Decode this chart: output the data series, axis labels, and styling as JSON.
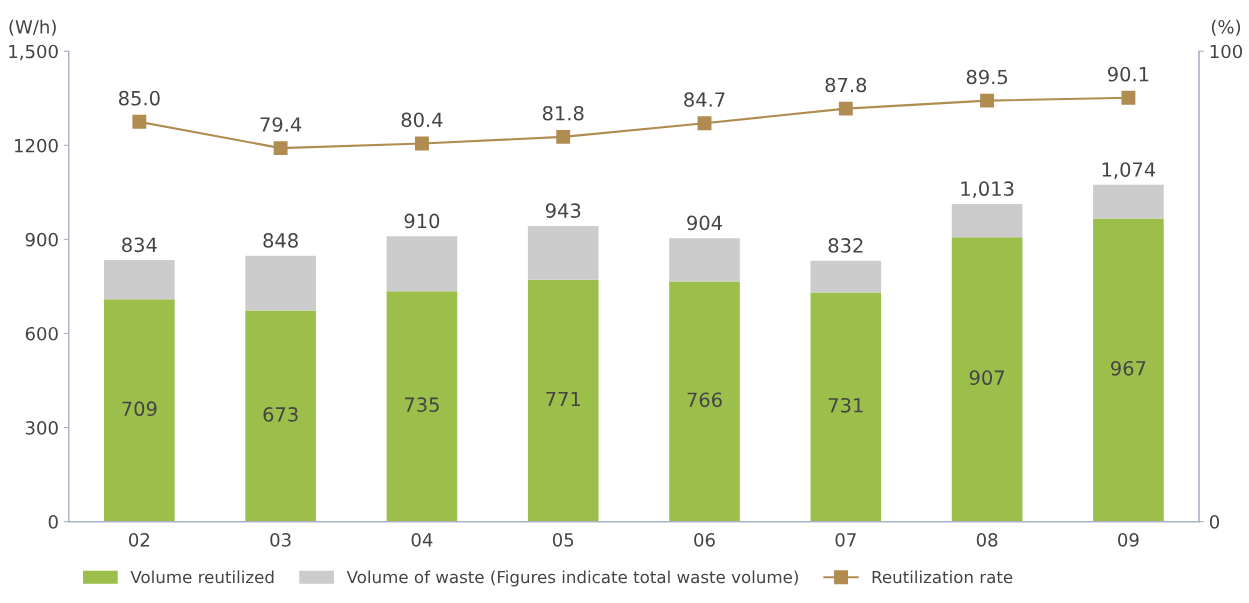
{
  "chart_data": {
    "type": "bar",
    "stacked": true,
    "ylabel": "(W/h)",
    "y2label": "(%)",
    "categories": [
      "02",
      "03",
      "04",
      "05",
      "06",
      "07",
      "08",
      "09"
    ],
    "series": [
      {
        "name": "Volume reutilized",
        "color": "#9cbf4c",
        "values": [
          709,
          673,
          735,
          771,
          766,
          731,
          907,
          967
        ],
        "value_labels": [
          "709",
          "673",
          "735",
          "771",
          "766",
          "731",
          "907",
          "967"
        ]
      },
      {
        "name": "Volume of waste (Figures indicate total waste volume)",
        "color": "#cccccc",
        "values": [
          125,
          175,
          175,
          172,
          138,
          101,
          106,
          107
        ]
      },
      {
        "name": "Reutilization rate",
        "type": "line",
        "axis": "y2",
        "color": "#b08c50",
        "marker": "square",
        "values": [
          85.0,
          79.4,
          80.4,
          81.8,
          84.7,
          87.8,
          89.5,
          90.1
        ],
        "value_labels": [
          "85.0",
          "79.4",
          "80.4",
          "81.8",
          "84.7",
          "87.8",
          "89.5",
          "90.1"
        ]
      }
    ],
    "totals": [
      "834",
      "848",
      "910",
      "943",
      "904",
      "832",
      "1,013",
      "1,074"
    ],
    "ylim": [
      0,
      1500
    ],
    "yticks": [
      0,
      300,
      600,
      900,
      1200,
      {
        "value": 1500,
        "label": "1,500"
      }
    ],
    "y2lim": [
      0,
      100
    ],
    "y2ticks": [
      0,
      100
    ],
    "grid": false,
    "legend": "bottom"
  }
}
